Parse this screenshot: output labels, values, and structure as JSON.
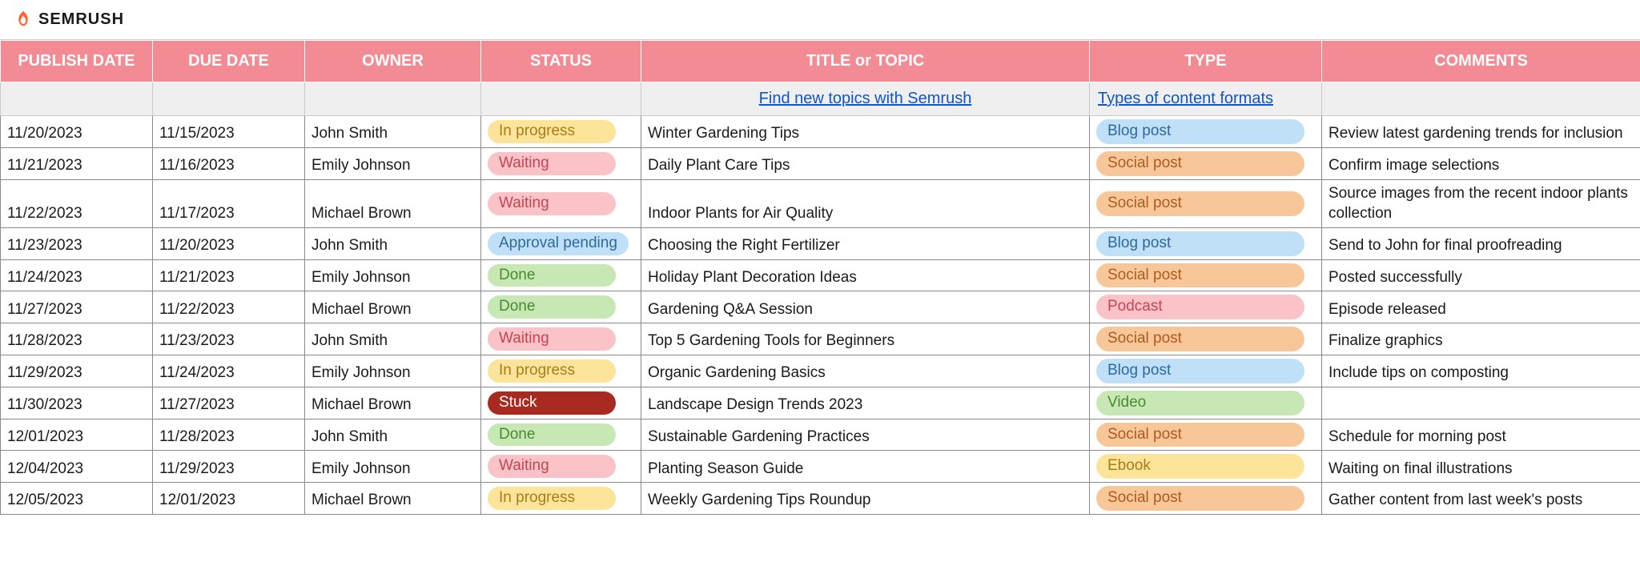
{
  "brand": {
    "name": "SEMRUSH"
  },
  "columns": {
    "publish": "PUBLISH DATE",
    "due": "DUE DATE",
    "owner": "OWNER",
    "status": "STATUS",
    "title": "TITLE or TOPIC",
    "type": "TYPE",
    "comments": "COMMENTS"
  },
  "helper": {
    "title_link": "Find new topics with Semrush",
    "type_link": "Types of content formats"
  },
  "status_styles": {
    "In progress": "bg-inprogress",
    "Waiting": "bg-waiting",
    "Approval pending": "bg-approval",
    "Done": "bg-done",
    "Stuck": "bg-stuck"
  },
  "type_styles": {
    "Blog post": "bg-blogpost",
    "Social post": "bg-socialpost",
    "Podcast": "bg-podcast",
    "Video": "bg-video",
    "Ebook": "bg-ebook"
  },
  "rows": [
    {
      "publish": "11/20/2023",
      "due": "11/15/2023",
      "owner": "John Smith",
      "status": "In progress",
      "title": "Winter Gardening Tips",
      "type": "Blog post",
      "comments": "Review latest gardening trends for inclusion"
    },
    {
      "publish": "11/21/2023",
      "due": "11/16/2023",
      "owner": "Emily Johnson",
      "status": "Waiting",
      "title": "Daily Plant Care Tips",
      "type": "Social post",
      "comments": "Confirm image selections"
    },
    {
      "publish": "11/22/2023",
      "due": "11/17/2023",
      "owner": "Michael Brown",
      "status": "Waiting",
      "title": "Indoor Plants for Air Quality",
      "type": "Social post",
      "comments": "Source images from the recent indoor plants collection"
    },
    {
      "publish": "11/23/2023",
      "due": "11/20/2023",
      "owner": "John Smith",
      "status": "Approval pending",
      "title": "Choosing the Right Fertilizer",
      "type": "Blog post",
      "comments": "Send to John for final proofreading"
    },
    {
      "publish": "11/24/2023",
      "due": "11/21/2023",
      "owner": "Emily Johnson",
      "status": "Done",
      "title": "Holiday Plant Decoration Ideas",
      "type": "Social post",
      "comments": "Posted successfully"
    },
    {
      "publish": "11/27/2023",
      "due": "11/22/2023",
      "owner": "Michael Brown",
      "status": "Done",
      "title": "Gardening Q&A Session",
      "type": "Podcast",
      "comments": "Episode released"
    },
    {
      "publish": "11/28/2023",
      "due": "11/23/2023",
      "owner": "John Smith",
      "status": "Waiting",
      "title": "Top 5 Gardening Tools for Beginners",
      "type": "Social post",
      "comments": "Finalize graphics"
    },
    {
      "publish": "11/29/2023",
      "due": "11/24/2023",
      "owner": "Emily Johnson",
      "status": "In progress",
      "title": "Organic Gardening Basics",
      "type": "Blog post",
      "comments": "Include tips on composting"
    },
    {
      "publish": "11/30/2023",
      "due": "11/27/2023",
      "owner": "Michael Brown",
      "status": "Stuck",
      "title": "Landscape Design Trends 2023",
      "type": "Video",
      "comments": ""
    },
    {
      "publish": "12/01/2023",
      "due": "11/28/2023",
      "owner": "John Smith",
      "status": "Done",
      "title": "Sustainable Gardening Practices",
      "type": "Social post",
      "comments": "Schedule for morning post"
    },
    {
      "publish": "12/04/2023",
      "due": "11/29/2023",
      "owner": "Emily Johnson",
      "status": "Waiting",
      "title": "Planting Season Guide",
      "type": "Ebook",
      "comments": "Waiting on final illustrations"
    },
    {
      "publish": "12/05/2023",
      "due": "12/01/2023",
      "owner": "Michael Brown",
      "status": "In progress",
      "title": "Weekly Gardening Tips Roundup",
      "type": "Social post",
      "comments": "Gather content from last week's posts"
    }
  ],
  "colors": {
    "header_bg": "#f28b94",
    "header_text": "#ffffff",
    "helper_bg": "#efefef",
    "link": "#1155cc",
    "grid_border": "#8a8a8a"
  }
}
